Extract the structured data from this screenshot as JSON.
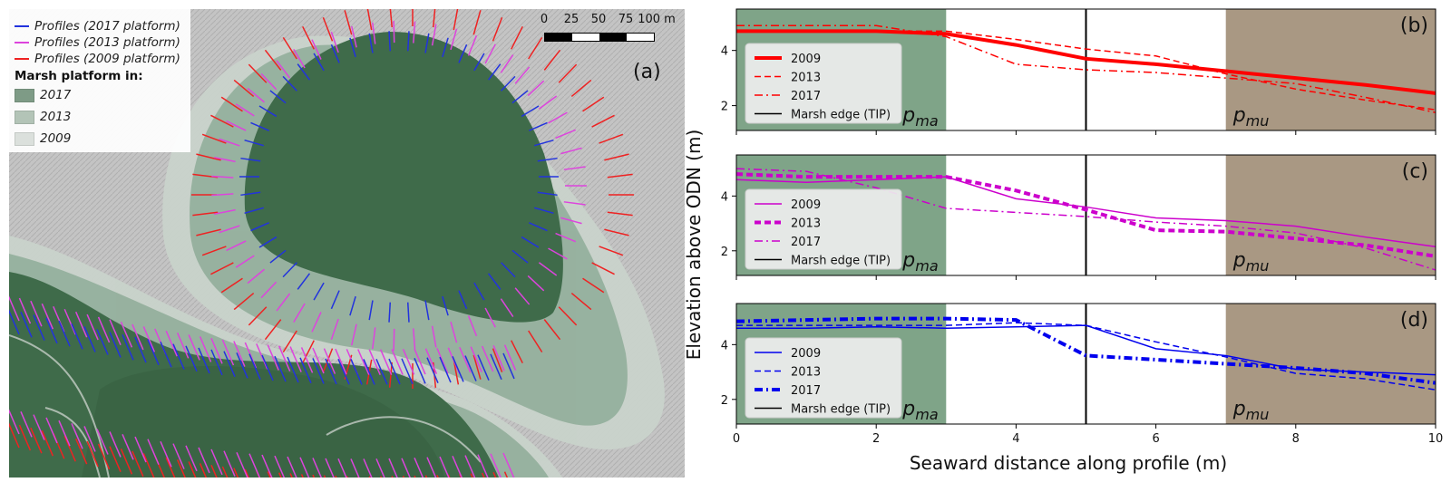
{
  "map": {
    "tag": "(a)",
    "legend": {
      "profiles_2017": "Profiles (2017 platform)",
      "profiles_2013": "Profiles (2013 platform)",
      "profiles_2009": "Profiles (2009 platform)",
      "platform_title": "Marsh platform in:",
      "platform_2017": "2017",
      "platform_2013": "2013",
      "platform_2009": "2009"
    },
    "scale_labels": [
      "0",
      "25",
      "50",
      "75",
      "100 m"
    ],
    "colors": {
      "profile_2017": "#2233dd",
      "profile_2013": "#dd44dd",
      "profile_2009": "#ee2222",
      "platform_2017": "#3f6b4a",
      "platform_2013": "#95b09d",
      "platform_2009": "#c9d3cb",
      "hillshade": "#bdbdbd"
    }
  },
  "chart_data": [
    {
      "type": "line",
      "tag": "(b)",
      "color": "#ff0000",
      "xlim": [
        0,
        10
      ],
      "ylim": [
        1.1,
        5.5
      ],
      "yticks": [
        2,
        4
      ],
      "marsh_edge_x": 5,
      "zones": [
        {
          "label_main": "p",
          "label_sub": "ma",
          "x0": 0,
          "x1": 3,
          "color": "#7fa488"
        },
        {
          "label_main": "p",
          "label_sub": "mu",
          "x0": 7,
          "x1": 10,
          "color": "#a99883"
        }
      ],
      "series": [
        {
          "name": "2009",
          "style": "solid",
          "width": 4,
          "x": [
            0,
            1,
            2,
            3,
            4,
            5,
            6,
            7,
            8,
            9,
            10
          ],
          "y": [
            4.7,
            4.7,
            4.7,
            4.6,
            4.2,
            3.7,
            3.5,
            3.25,
            3.0,
            2.75,
            2.45
          ]
        },
        {
          "name": "2013",
          "style": "dashed",
          "width": 1.5,
          "x": [
            0,
            1,
            2,
            3,
            4,
            5,
            6,
            7,
            8,
            9,
            10
          ],
          "y": [
            4.7,
            4.7,
            4.7,
            4.7,
            4.4,
            4.05,
            3.8,
            3.15,
            2.6,
            2.2,
            1.85
          ]
        },
        {
          "name": "2017",
          "style": "dashdot",
          "width": 1.5,
          "x": [
            0,
            1,
            2,
            3,
            4,
            5,
            6,
            7,
            8,
            9,
            10
          ],
          "y": [
            4.9,
            4.9,
            4.9,
            4.5,
            3.5,
            3.3,
            3.2,
            3.0,
            2.8,
            2.3,
            1.75
          ]
        }
      ],
      "legend_extra": "Marsh edge (TIP)"
    },
    {
      "type": "line",
      "tag": "(c)",
      "color": "#cc00cc",
      "xlim": [
        0,
        10
      ],
      "ylim": [
        1.1,
        5.5
      ],
      "yticks": [
        2,
        4
      ],
      "marsh_edge_x": 5,
      "zones": [
        {
          "label_main": "p",
          "label_sub": "ma",
          "x0": 0,
          "x1": 3,
          "color": "#7fa488"
        },
        {
          "label_main": "p",
          "label_sub": "mu",
          "x0": 7,
          "x1": 10,
          "color": "#a99883"
        }
      ],
      "series": [
        {
          "name": "2009",
          "style": "solid",
          "width": 1.5,
          "x": [
            0,
            1,
            2,
            3,
            4,
            5,
            6,
            7,
            8,
            9,
            10
          ],
          "y": [
            4.6,
            4.5,
            4.6,
            4.7,
            3.9,
            3.6,
            3.2,
            3.1,
            2.9,
            2.5,
            2.15
          ]
        },
        {
          "name": "2013",
          "style": "dashed",
          "width": 4,
          "x": [
            0,
            1,
            2,
            3,
            4,
            5,
            6,
            7,
            8,
            9,
            10
          ],
          "y": [
            4.8,
            4.7,
            4.7,
            4.7,
            4.2,
            3.5,
            2.75,
            2.7,
            2.45,
            2.2,
            1.8
          ]
        },
        {
          "name": "2017",
          "style": "dashdot",
          "width": 1.5,
          "x": [
            0,
            1,
            2,
            3,
            4,
            5,
            6,
            7,
            8,
            9,
            10
          ],
          "y": [
            5.0,
            4.9,
            4.3,
            3.55,
            3.4,
            3.25,
            3.05,
            2.9,
            2.65,
            2.1,
            1.3
          ]
        }
      ],
      "legend_extra": "Marsh edge (TIP)"
    },
    {
      "type": "line",
      "tag": "(d)",
      "color": "#0000ee",
      "xlim": [
        0,
        10
      ],
      "ylim": [
        1.1,
        5.5
      ],
      "yticks": [
        2,
        4
      ],
      "xticks": [
        0,
        2,
        4,
        6,
        8,
        10
      ],
      "marsh_edge_x": 5,
      "zones": [
        {
          "label_main": "p",
          "label_sub": "ma",
          "x0": 0,
          "x1": 3,
          "color": "#7fa488"
        },
        {
          "label_main": "p",
          "label_sub": "mu",
          "x0": 7,
          "x1": 10,
          "color": "#a99883"
        }
      ],
      "series": [
        {
          "name": "2009",
          "style": "solid",
          "width": 1.5,
          "x": [
            0,
            1,
            2,
            3,
            4,
            5,
            6,
            7,
            8,
            9,
            10
          ],
          "y": [
            4.6,
            4.6,
            4.65,
            4.6,
            4.65,
            4.7,
            3.85,
            3.6,
            3.1,
            3.0,
            2.9
          ]
        },
        {
          "name": "2013",
          "style": "dashed",
          "width": 1.5,
          "x": [
            0,
            1,
            2,
            3,
            4,
            5,
            6,
            7,
            8,
            9,
            10
          ],
          "y": [
            4.7,
            4.7,
            4.7,
            4.7,
            4.8,
            4.7,
            4.1,
            3.55,
            2.95,
            2.75,
            2.35
          ]
        },
        {
          "name": "2017",
          "style": "dashdot",
          "width": 4,
          "x": [
            0,
            1,
            2,
            3,
            4,
            5,
            6,
            7,
            8,
            9,
            10
          ],
          "y": [
            4.85,
            4.9,
            4.95,
            4.95,
            4.9,
            3.6,
            3.45,
            3.3,
            3.15,
            2.95,
            2.6
          ]
        }
      ],
      "legend_extra": "Marsh edge (TIP)"
    }
  ],
  "axes": {
    "xlabel": "Seaward distance along profile (m)",
    "ylabel": "Elevation above ODN (m)"
  }
}
